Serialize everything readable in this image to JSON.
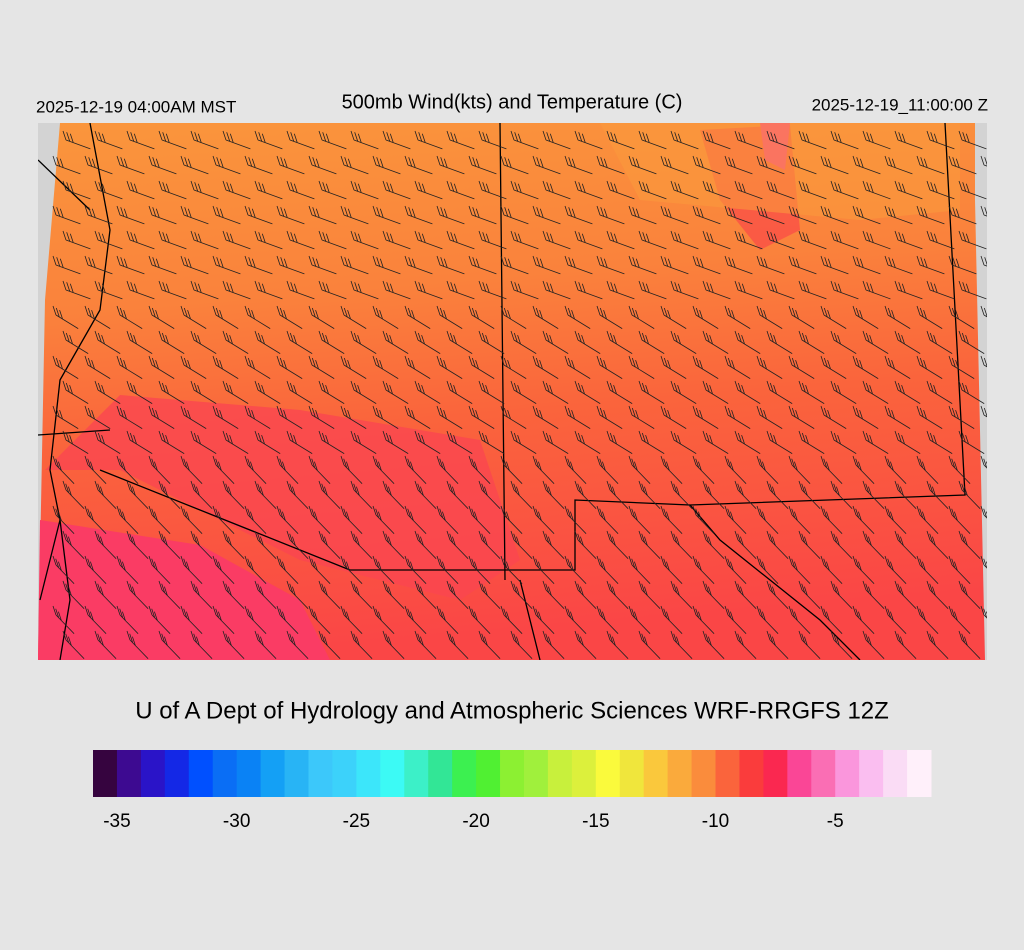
{
  "header": {
    "left": "2025-12-19 04:00AM MST",
    "title": "500mb Wind(kts) and Temperature (C)",
    "right": "2025-12-19_11:00:00 Z"
  },
  "credit": "U of A Dept of Hydrology and Atmospheric Sciences WRF-RRGFS 12Z",
  "colorbar": {
    "xlim": [
      -36,
      -1
    ],
    "xticks": [
      -35,
      -30,
      -25,
      -20,
      -15,
      -10,
      -5
    ],
    "colors": [
      "#36043f",
      "#3d0a91",
      "#2a14c8",
      "#1428e6",
      "#0050ff",
      "#0a6ef5",
      "#0a82f5",
      "#14a0f5",
      "#28b4f5",
      "#3cc8fa",
      "#3cd2fa",
      "#3ce6fa",
      "#3cfaf5",
      "#3cf0c8",
      "#32e696",
      "#3cf050",
      "#50f032",
      "#8cf032",
      "#a0f03c",
      "#c8f03c",
      "#dcf03c",
      "#fafa3c",
      "#f0e63c",
      "#fac83c",
      "#faaa3c",
      "#fa8c3c",
      "#fa643c",
      "#fa3c3c",
      "#fa2850",
      "#fa4696",
      "#fa6eb4",
      "#fa96dc",
      "#fabef0",
      "#fadcf5",
      "#fff0fa"
    ]
  }
}
